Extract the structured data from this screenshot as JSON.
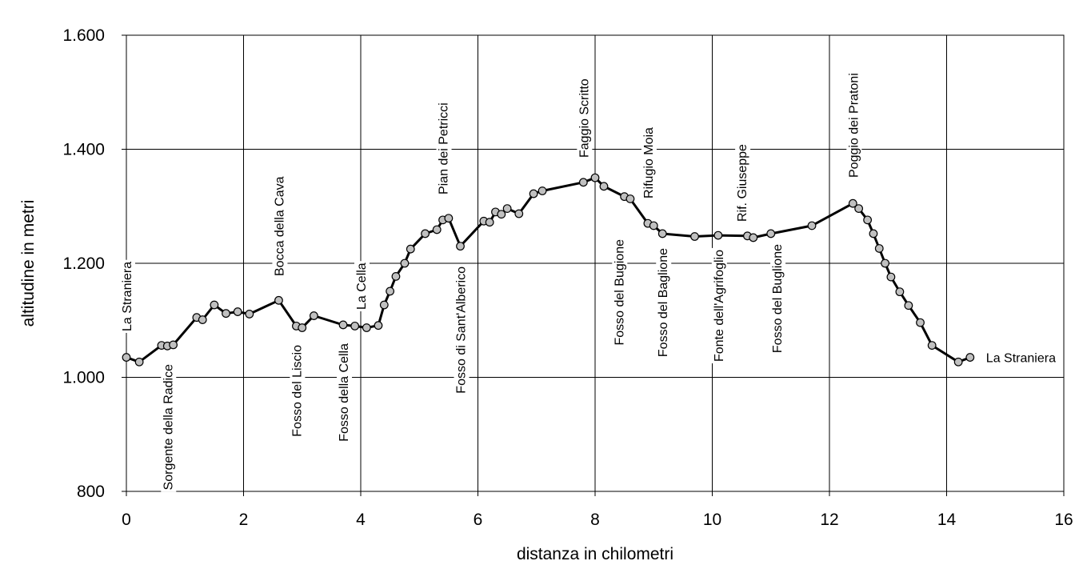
{
  "chart_data": {
    "type": "line",
    "xlabel": "distanza in chilometri",
    "ylabel": "altitudine  in metri",
    "xlim": [
      0,
      16
    ],
    "ylim": [
      800,
      1600
    ],
    "x_ticks": [
      "0",
      "2",
      "4",
      "6",
      "8",
      "10",
      "12",
      "14",
      "16"
    ],
    "y_ticks": [
      "800",
      "1.000",
      "1.200",
      "1.400",
      "1.600"
    ],
    "grid": true,
    "legend": "none",
    "series": [
      {
        "x": [
          0.0,
          0.22,
          0.6,
          0.7,
          0.8,
          1.2,
          1.3,
          1.5,
          1.7,
          1.9,
          2.1,
          2.6,
          2.9,
          3.0,
          3.2,
          3.7,
          3.9,
          4.1,
          4.3,
          4.4,
          4.5,
          4.6,
          4.75,
          4.85,
          5.1,
          5.3,
          5.4,
          5.5,
          5.7,
          6.1,
          6.2,
          6.3,
          6.4,
          6.5,
          6.7,
          6.95,
          7.1,
          7.8,
          8.0,
          8.15,
          8.5,
          8.6,
          8.9,
          9.0,
          9.15,
          9.7,
          10.1,
          10.6,
          10.7,
          11.0,
          11.7,
          12.4,
          12.5,
          12.65,
          12.75,
          12.85,
          12.95,
          13.05,
          13.2,
          13.35,
          13.55,
          13.75,
          14.2,
          14.4
        ],
        "y": [
          1035,
          1027,
          1056,
          1055,
          1057,
          1105,
          1101,
          1127,
          1112,
          1115,
          1111,
          1135,
          1090,
          1087,
          1108,
          1092,
          1090,
          1087,
          1091,
          1127,
          1151,
          1177,
          1200,
          1225,
          1252,
          1259,
          1276,
          1279,
          1230,
          1274,
          1272,
          1290,
          1286,
          1296,
          1287,
          1322,
          1327,
          1342,
          1350,
          1335,
          1317,
          1313,
          1270,
          1266,
          1252,
          1247,
          1249,
          1248,
          1245,
          1252,
          1266,
          1305,
          1296,
          1276,
          1252,
          1226,
          1200,
          1176,
          1150,
          1126,
          1096,
          1056,
          1027,
          1035
        ]
      }
    ],
    "annotations": [
      {
        "text": "La Straniera",
        "x": 0.0,
        "side": "above"
      },
      {
        "text": "Sorgente della Radice",
        "x": 0.7,
        "side": "below"
      },
      {
        "text": "Bocca della Cava",
        "x": 2.6,
        "side": "above"
      },
      {
        "text": "Fosso del Liscio",
        "x": 2.9,
        "side": "below"
      },
      {
        "text": "Fosso della Cella",
        "x": 3.7,
        "side": "below"
      },
      {
        "text": "La Cella",
        "x": 4.0,
        "side": "above"
      },
      {
        "text": "Pian dei Petricci",
        "x": 5.4,
        "side": "above"
      },
      {
        "text": "Fosso di Sant'Alberico",
        "x": 5.7,
        "side": "below"
      },
      {
        "text": "Faggio Scritto",
        "x": 7.8,
        "side": "above"
      },
      {
        "text": "Fosso del Bugione",
        "x": 8.4,
        "side": "below"
      },
      {
        "text": "Rifugio Moia",
        "x": 8.9,
        "side": "above"
      },
      {
        "text": "Fosso del Baglione",
        "x": 9.15,
        "side": "below"
      },
      {
        "text": "Fonte dell'Agrifoglio",
        "x": 10.1,
        "side": "below"
      },
      {
        "text": "Rif. Giuseppe",
        "x": 10.5,
        "side": "above"
      },
      {
        "text": "Fosso del Buglione",
        "x": 11.1,
        "side": "below"
      },
      {
        "text": "Poggio dei Pratoni",
        "x": 12.4,
        "side": "above"
      },
      {
        "text": "La Straniera",
        "x": 14.4,
        "side": "right"
      }
    ]
  }
}
